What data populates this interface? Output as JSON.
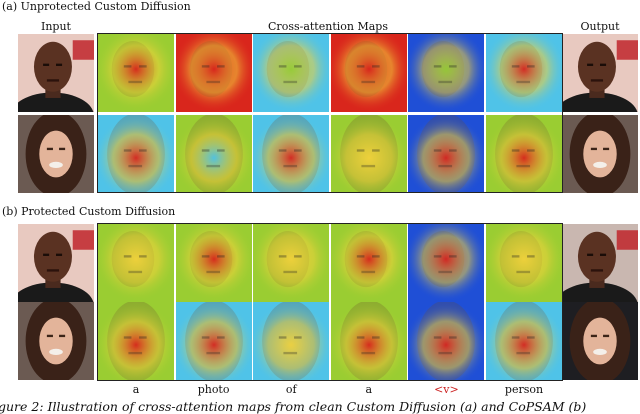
{
  "sections": [
    {
      "label": "(a) Unprotected Custom Diffusion"
    },
    {
      "label": "(b) Protected Custom Diffusion"
    }
  ],
  "columns": {
    "input": "Input",
    "maps": "Cross-attention Maps",
    "output": "Output"
  },
  "tokens": [
    {
      "text": "a",
      "color": "#111111"
    },
    {
      "text": "photo",
      "color": "#111111"
    },
    {
      "text": "of",
      "color": "#111111"
    },
    {
      "text": "a",
      "color": "#111111"
    },
    {
      "text": "<v>",
      "color": "#cc2222"
    },
    {
      "text": "person",
      "color": "#111111"
    }
  ],
  "caption": "gure 2: Illustration of cross-attention maps from clean Custom Diffusion (a) and CoPSAM (b)",
  "colors": {
    "jet_blue": "#1f4fd6",
    "jet_cyan": "#4fc3e8",
    "jet_green": "#9acd32",
    "jet_yellow": "#f2d23c",
    "jet_red": "#d9261c"
  }
}
